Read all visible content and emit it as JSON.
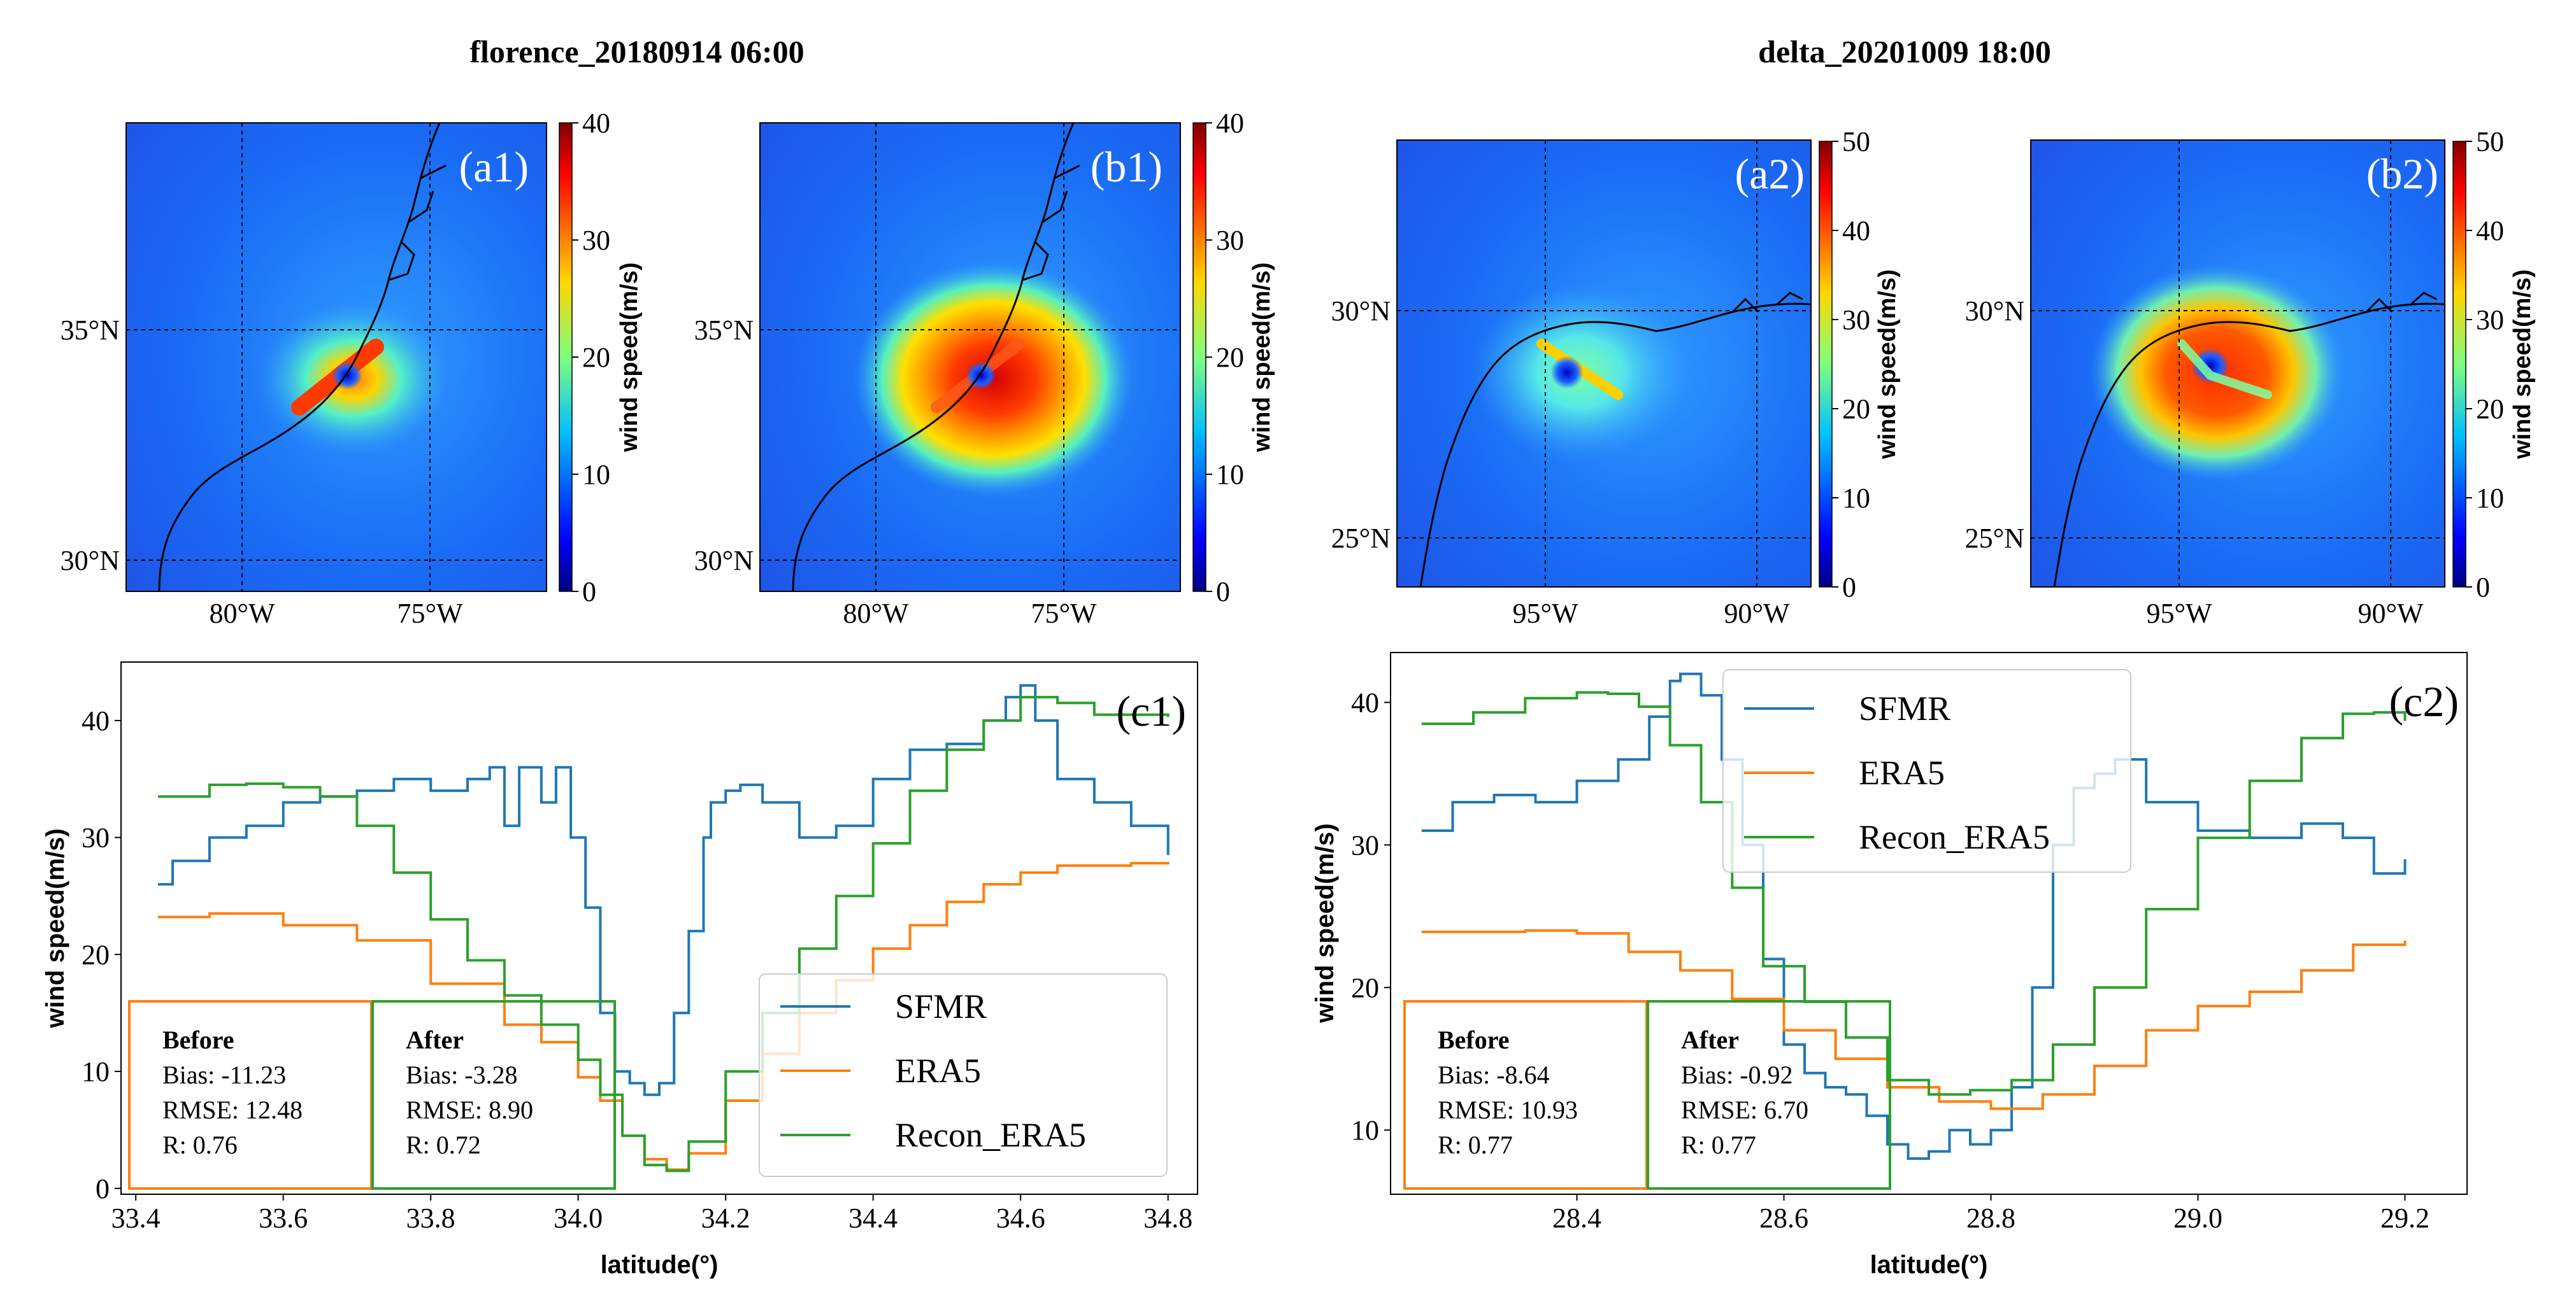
{
  "titles": {
    "left": "florence_20180914 06:00",
    "right": "delta_20201009 18:00"
  },
  "colors": {
    "sfmr": "#1f77b4",
    "era5": "#ff7f0e",
    "recon": "#2ca02c",
    "before_box": "#ff7f0e",
    "after_box": "#2ca02c"
  },
  "maps": [
    {
      "tag": "(a1)",
      "storm": "florence",
      "lat_ticks": [
        "35°N",
        "30°N"
      ],
      "lon_ticks": [
        "80°W",
        "75°W"
      ],
      "colorbar": {
        "min": 0,
        "max": 40,
        "ticks": [
          "0",
          "10",
          "20",
          "30",
          "40"
        ],
        "label": "wind speed(m/s)"
      },
      "variant": "era5"
    },
    {
      "tag": "(b1)",
      "storm": "florence",
      "lat_ticks": [
        "35°N",
        "30°N"
      ],
      "lon_ticks": [
        "80°W",
        "75°W"
      ],
      "colorbar": {
        "min": 0,
        "max": 40,
        "ticks": [
          "0",
          "10",
          "20",
          "30",
          "40"
        ],
        "label": "wind speed(m/s)"
      },
      "variant": "recon"
    },
    {
      "tag": "(a2)",
      "storm": "delta",
      "lat_ticks": [
        "30°N",
        "25°N"
      ],
      "lon_ticks": [
        "95°W",
        "90°W"
      ],
      "colorbar": {
        "min": 0,
        "max": 50,
        "ticks": [
          "0",
          "10",
          "20",
          "30",
          "40",
          "50"
        ],
        "label": "wind speed(m/s)"
      },
      "variant": "era5"
    },
    {
      "tag": "(b2)",
      "storm": "delta",
      "lat_ticks": [
        "30°N",
        "25°N"
      ],
      "lon_ticks": [
        "95°W",
        "90°W"
      ],
      "colorbar": {
        "min": 0,
        "max": 50,
        "ticks": [
          "0",
          "10",
          "20",
          "30",
          "40",
          "50"
        ],
        "label": "wind speed(m/s)"
      },
      "variant": "recon"
    }
  ],
  "chart_data": [
    {
      "type": "line",
      "tag": "(c1)",
      "xlabel": "latitude(°)",
      "ylabel": "wind speed(m/s)",
      "xlim": [
        33.38,
        34.84
      ],
      "ylim": [
        -0.5,
        45
      ],
      "xticks": [
        "33.4",
        "33.6",
        "33.8",
        "34.0",
        "34.2",
        "34.4",
        "34.6",
        "34.8"
      ],
      "yticks": [
        "0",
        "10",
        "20",
        "30",
        "40"
      ],
      "legend": {
        "position": "lower-right",
        "entries": [
          "SFMR",
          "ERA5",
          "Recon_ERA5"
        ]
      },
      "stats": {
        "before": {
          "title": "Before",
          "bias": "Bias: -11.23",
          "rmse": "RMSE: 12.48",
          "r": "R: 0.76"
        },
        "after": {
          "title": "After",
          "bias": "Bias: -3.28",
          "rmse": "RMSE: 8.90",
          "r": "R: 0.72"
        }
      },
      "series": [
        {
          "name": "SFMR",
          "x": [
            33.43,
            33.45,
            33.5,
            33.55,
            33.6,
            33.65,
            33.7,
            33.75,
            33.8,
            33.85,
            33.88,
            33.9,
            33.92,
            33.95,
            33.97,
            33.99,
            34.01,
            34.03,
            34.05,
            34.07,
            34.09,
            34.11,
            34.13,
            34.15,
            34.17,
            34.18,
            34.2,
            34.22,
            34.25,
            34.3,
            34.35,
            34.4,
            34.45,
            34.5,
            34.55,
            34.58,
            34.6,
            34.62,
            34.65,
            34.7,
            34.75,
            34.8
          ],
          "y": [
            26,
            28,
            30,
            31,
            33,
            33.5,
            34,
            35,
            34,
            35,
            36,
            31,
            36,
            33,
            36,
            30,
            24,
            15,
            10,
            9,
            8,
            9,
            15,
            22,
            30,
            33,
            34,
            34.5,
            33,
            30,
            31,
            35,
            37.5,
            38,
            40,
            42,
            43,
            40,
            35,
            33,
            31,
            28.5
          ]
        },
        {
          "name": "ERA5",
          "x": [
            33.43,
            33.5,
            33.6,
            33.7,
            33.8,
            33.9,
            33.95,
            34.0,
            34.03,
            34.06,
            34.09,
            34.12,
            34.15,
            34.2,
            34.25,
            34.3,
            34.35,
            34.4,
            34.45,
            34.5,
            34.55,
            34.6,
            34.65,
            34.7,
            34.75,
            34.8
          ],
          "y": [
            23.2,
            23.5,
            22.5,
            21.2,
            17.5,
            14,
            12.5,
            9.5,
            7.5,
            4.5,
            2.5,
            1.6,
            3,
            7.5,
            11.5,
            15,
            17.8,
            20.5,
            22.5,
            24.5,
            26,
            27,
            27.6,
            27.6,
            27.8,
            27.7
          ]
        },
        {
          "name": "Recon_ERA5",
          "x": [
            33.43,
            33.5,
            33.55,
            33.6,
            33.65,
            33.7,
            33.75,
            33.8,
            33.85,
            33.9,
            33.95,
            34.0,
            34.03,
            34.06,
            34.09,
            34.12,
            34.15,
            34.2,
            34.25,
            34.3,
            34.35,
            34.4,
            34.45,
            34.5,
            34.55,
            34.6,
            34.65,
            34.7,
            34.75,
            34.8
          ],
          "y": [
            33.5,
            34.5,
            34.6,
            34.3,
            33.5,
            31,
            27,
            23,
            19.5,
            16.5,
            14,
            11,
            8,
            4.5,
            2,
            1.5,
            4,
            10,
            15,
            20.5,
            25,
            29.5,
            34,
            37.5,
            40,
            42,
            41.5,
            40.5,
            40.5,
            40.3
          ]
        }
      ]
    },
    {
      "type": "line",
      "tag": "(c2)",
      "xlabel": "latitude(°)",
      "ylabel": "wind speed(m/s)",
      "xlim": [
        28.22,
        29.26
      ],
      "ylim": [
        5.5,
        43.5
      ],
      "xticks": [
        "28.4",
        "28.6",
        "28.8",
        "29.0",
        "29.2"
      ],
      "yticks": [
        "10",
        "20",
        "30",
        "40"
      ],
      "legend": {
        "position": "upper-center",
        "entries": [
          "SFMR",
          "ERA5",
          "Recon_ERA5"
        ]
      },
      "stats": {
        "before": {
          "title": "Before",
          "bias": "Bias: -8.64",
          "rmse": "RMSE: 10.93",
          "r": "R: 0.77"
        },
        "after": {
          "title": "After",
          "bias": "Bias: -0.92",
          "rmse": "RMSE: 6.70",
          "r": "R: 0.77"
        }
      },
      "series": [
        {
          "name": "SFMR",
          "x": [
            28.25,
            28.28,
            28.32,
            28.36,
            28.4,
            28.44,
            28.47,
            28.49,
            28.5,
            28.52,
            28.54,
            28.56,
            28.58,
            28.6,
            28.62,
            28.64,
            28.66,
            28.68,
            28.7,
            28.72,
            28.74,
            28.76,
            28.78,
            28.8,
            28.82,
            28.84,
            28.86,
            28.88,
            28.9,
            28.92,
            28.95,
            29.0,
            29.05,
            29.1,
            29.14,
            29.17,
            29.2
          ],
          "y": [
            31,
            33,
            33.5,
            33,
            34.5,
            36,
            39,
            41.5,
            42,
            40.5,
            36,
            30,
            22,
            16,
            14,
            13,
            12.5,
            11,
            9,
            8,
            8.5,
            10,
            9,
            10,
            13,
            20,
            30,
            34,
            35,
            36,
            33,
            31,
            30.5,
            31.5,
            30.5,
            28,
            29
          ]
        },
        {
          "name": "ERA5",
          "x": [
            28.25,
            28.3,
            28.35,
            28.4,
            28.45,
            28.5,
            28.55,
            28.6,
            28.65,
            28.7,
            28.75,
            28.8,
            28.85,
            28.9,
            28.95,
            29.0,
            29.05,
            29.1,
            29.15,
            29.2
          ],
          "y": [
            23.9,
            23.9,
            24,
            23.8,
            22.5,
            21.2,
            19.2,
            17,
            15,
            13,
            12,
            11.5,
            12.5,
            14.5,
            17,
            18.7,
            19.7,
            21.2,
            23,
            23.3
          ]
        },
        {
          "name": "Recon_ERA5",
          "x": [
            28.25,
            28.3,
            28.35,
            28.4,
            28.43,
            28.46,
            28.49,
            28.52,
            28.55,
            28.58,
            28.62,
            28.66,
            28.7,
            28.74,
            28.78,
            28.82,
            28.86,
            28.9,
            28.95,
            29.0,
            29.05,
            29.1,
            29.14,
            29.17,
            29.2
          ],
          "y": [
            38.5,
            39.3,
            40.3,
            40.7,
            40.6,
            39.7,
            37,
            33,
            27,
            21.5,
            19,
            16.5,
            13.5,
            12.5,
            12.8,
            13.5,
            16,
            20,
            25.5,
            30.5,
            34.5,
            37.5,
            39.2,
            39.3,
            38.7
          ]
        }
      ]
    }
  ]
}
